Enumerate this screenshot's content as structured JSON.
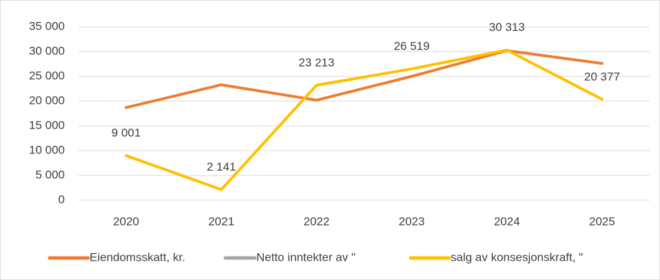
{
  "chart_data": {
    "type": "line",
    "categories": [
      "2020",
      "2021",
      "2022",
      "2023",
      "2024",
      "2025"
    ],
    "series": [
      {
        "name": "Eiendomsskatt,  kr.",
        "color": "#ed7d31",
        "values": [
          18700,
          23300,
          20200,
          25000,
          30200,
          27600
        ]
      },
      {
        "name": "Netto inntekter av   \"",
        "color": "#a5a5a5",
        "values": [
          null,
          null,
          null,
          null,
          null,
          null
        ]
      },
      {
        "name": "salg av konsesjonskraft,  \"",
        "color": "#ffc000",
        "values": [
          9001,
          2141,
          23213,
          26519,
          30313,
          20377
        ],
        "value_labels": [
          "9 001",
          "2 141",
          "23 213",
          "26 519",
          "30 313",
          "20 377"
        ]
      }
    ],
    "ylim": [
      0,
      35000
    ],
    "yticks": [
      0,
      {
        "value": 5000,
        "label": "5 000"
      },
      {
        "value": 10000,
        "label": "10 000"
      },
      {
        "value": 15000,
        "label": "15 000"
      },
      {
        "value": 20000,
        "label": "20 000"
      },
      {
        "value": 25000,
        "label": "25 000"
      },
      {
        "value": 30000,
        "label": "30 000"
      },
      {
        "value": 35000,
        "label": "35 000"
      }
    ],
    "grid": true,
    "legend": "bottom"
  }
}
